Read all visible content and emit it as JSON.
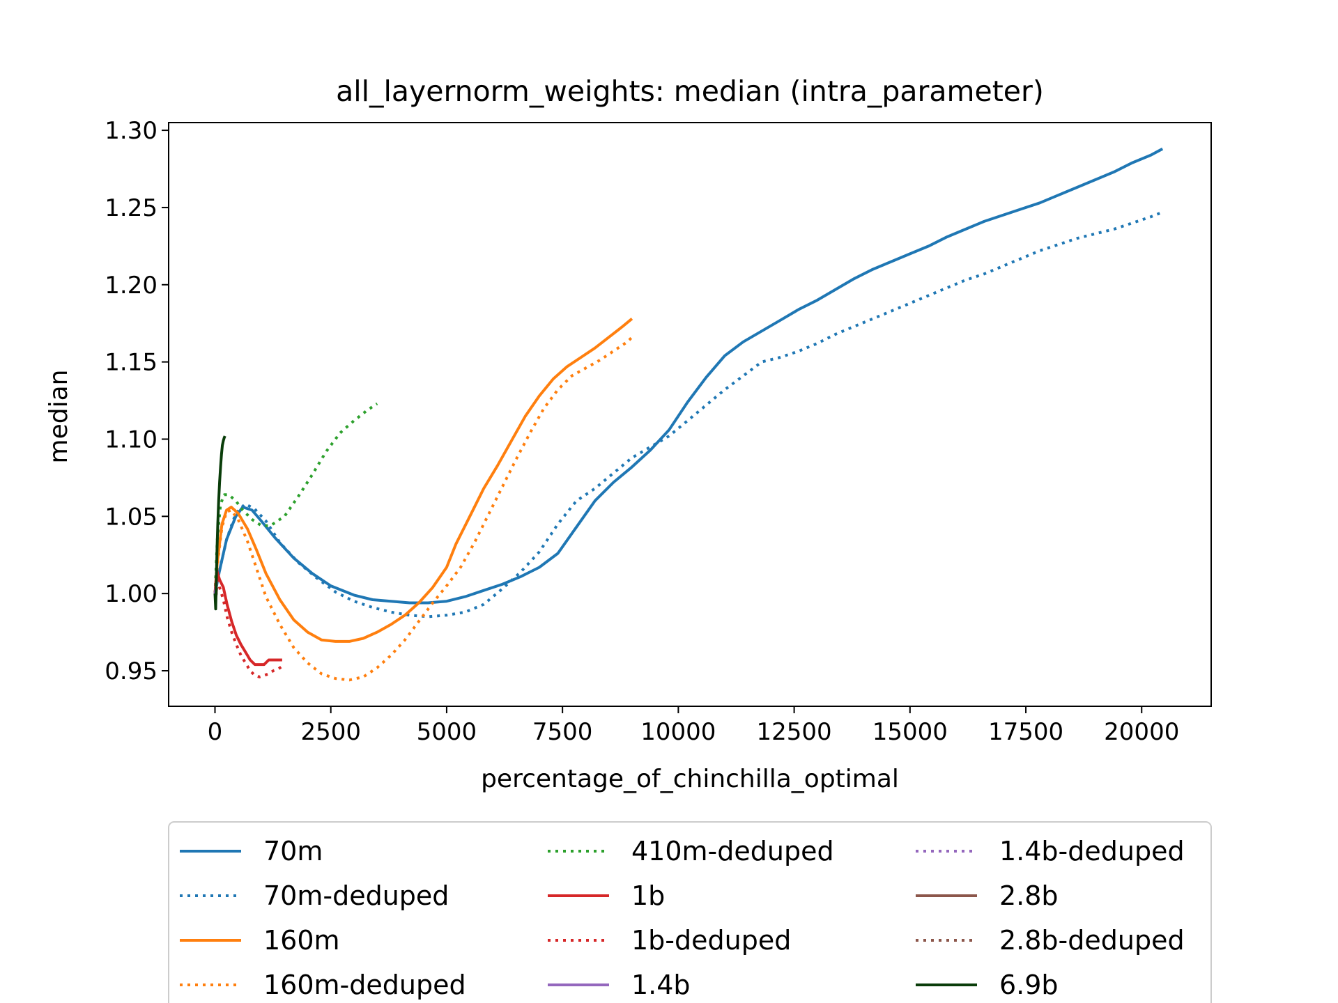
{
  "chart_data": {
    "type": "line",
    "title": "all_layernorm_weights: median (intra_parameter)",
    "xlabel": "percentage_of_chinchilla_optimal",
    "ylabel": "median",
    "xlim": [
      -1000,
      21500
    ],
    "ylim": [
      0.927,
      1.305
    ],
    "xticks": [
      0,
      2500,
      5000,
      7500,
      10000,
      12500,
      15000,
      17500,
      20000
    ],
    "xtick_labels": [
      "0",
      "2500",
      "5000",
      "7500",
      "10000",
      "12500",
      "15000",
      "17500",
      "20000"
    ],
    "yticks": [
      0.95,
      1.0,
      1.05,
      1.1,
      1.15,
      1.2,
      1.25,
      1.3
    ],
    "ytick_labels": [
      "0.95",
      "1.00",
      "1.05",
      "1.10",
      "1.15",
      "1.20",
      "1.25",
      "1.30"
    ],
    "grid": false,
    "legend_placement": "below-plot",
    "legend_columns": 3,
    "series": [
      {
        "name": "70m",
        "color": "#1f77b4",
        "style": "solid",
        "x": [
          0,
          100,
          250,
          450,
          600,
          800,
          1000,
          1300,
          1700,
          2100,
          2500,
          3000,
          3400,
          3800,
          4200,
          4600,
          5000,
          5400,
          5800,
          6200,
          6600,
          7000,
          7400,
          7800,
          8200,
          8600,
          9000,
          9400,
          9800,
          10200,
          10600,
          11000,
          11400,
          11800,
          12200,
          12600,
          13000,
          13400,
          13800,
          14200,
          14600,
          15000,
          15400,
          15800,
          16200,
          16600,
          17000,
          17400,
          17800,
          18200,
          18600,
          19000,
          19400,
          19800,
          20200,
          20450
        ],
        "y": [
          1.0,
          1.015,
          1.035,
          1.05,
          1.056,
          1.054,
          1.047,
          1.036,
          1.023,
          1.013,
          1.005,
          0.999,
          0.996,
          0.995,
          0.994,
          0.994,
          0.995,
          0.998,
          1.002,
          1.006,
          1.011,
          1.017,
          1.026,
          1.043,
          1.06,
          1.072,
          1.082,
          1.093,
          1.106,
          1.124,
          1.14,
          1.154,
          1.163,
          1.17,
          1.177,
          1.184,
          1.19,
          1.197,
          1.204,
          1.21,
          1.215,
          1.22,
          1.225,
          1.231,
          1.236,
          1.241,
          1.245,
          1.249,
          1.253,
          1.258,
          1.263,
          1.268,
          1.273,
          1.279,
          1.284,
          1.288
        ]
      },
      {
        "name": "70m-deduped",
        "color": "#1f77b4",
        "style": "dotted",
        "x": [
          0,
          100,
          250,
          450,
          650,
          850,
          1100,
          1400,
          1800,
          2200,
          2600,
          3000,
          3400,
          3800,
          4200,
          4600,
          5000,
          5400,
          5800,
          6200,
          6600,
          7000,
          7400,
          7800,
          8200,
          8600,
          9000,
          9400,
          9800,
          10200,
          10600,
          11000,
          11400,
          11800,
          12200,
          12600,
          13000,
          13400,
          13800,
          14200,
          14600,
          15000,
          15400,
          15800,
          16200,
          16600,
          17000,
          17400,
          17800,
          18200,
          18600,
          19000,
          19400,
          19800,
          20200,
          20450
        ],
        "y": [
          1.0,
          1.015,
          1.035,
          1.052,
          1.058,
          1.055,
          1.047,
          1.033,
          1.02,
          1.01,
          1.001,
          0.995,
          0.991,
          0.988,
          0.986,
          0.985,
          0.986,
          0.988,
          0.993,
          1.003,
          1.014,
          1.027,
          1.045,
          1.06,
          1.068,
          1.078,
          1.088,
          1.095,
          1.102,
          1.112,
          1.122,
          1.132,
          1.141,
          1.15,
          1.153,
          1.157,
          1.162,
          1.168,
          1.173,
          1.178,
          1.183,
          1.188,
          1.193,
          1.198,
          1.203,
          1.207,
          1.212,
          1.217,
          1.222,
          1.226,
          1.23,
          1.233,
          1.236,
          1.24,
          1.244,
          1.247
        ]
      },
      {
        "name": "160m",
        "color": "#ff7f0e",
        "style": "solid",
        "x": [
          0,
          50,
          150,
          250,
          350,
          500,
          700,
          900,
          1100,
          1400,
          1700,
          2000,
          2300,
          2600,
          2900,
          3200,
          3500,
          3800,
          4100,
          4400,
          4700,
          5000,
          5200,
          5500,
          5800,
          6100,
          6400,
          6700,
          7000,
          7300,
          7600,
          7900,
          8200,
          8500,
          8800,
          9000
        ],
        "y": [
          1.0,
          1.02,
          1.045,
          1.054,
          1.056,
          1.052,
          1.042,
          1.028,
          1.013,
          0.996,
          0.983,
          0.975,
          0.97,
          0.969,
          0.969,
          0.971,
          0.975,
          0.98,
          0.986,
          0.994,
          1.004,
          1.017,
          1.032,
          1.05,
          1.068,
          1.083,
          1.099,
          1.115,
          1.128,
          1.139,
          1.147,
          1.153,
          1.159,
          1.166,
          1.173,
          1.178
        ]
      },
      {
        "name": "160m-deduped",
        "color": "#ff7f0e",
        "style": "dotted",
        "x": [
          0,
          50,
          150,
          250,
          350,
          500,
          700,
          900,
          1100,
          1400,
          1700,
          2000,
          2300,
          2600,
          2900,
          3200,
          3500,
          3800,
          4100,
          4400,
          4700,
          5000,
          5300,
          5600,
          5900,
          6200,
          6500,
          6800,
          7100,
          7400,
          7700,
          8000,
          8300,
          8600,
          8900,
          9000
        ],
        "y": [
          1.0,
          1.018,
          1.043,
          1.053,
          1.054,
          1.048,
          1.034,
          1.016,
          0.998,
          0.98,
          0.965,
          0.955,
          0.948,
          0.945,
          0.944,
          0.946,
          0.952,
          0.96,
          0.97,
          0.982,
          0.994,
          1.005,
          1.017,
          1.033,
          1.051,
          1.069,
          1.087,
          1.104,
          1.12,
          1.132,
          1.141,
          1.146,
          1.151,
          1.157,
          1.163,
          1.166
        ]
      },
      {
        "name": "410m-deduped",
        "color": "#2ca02c",
        "style": "dotted",
        "x": [
          0,
          50,
          120,
          200,
          300,
          450,
          600,
          800,
          1000,
          1200,
          1500,
          1800,
          2100,
          2400,
          2700,
          3000,
          3300,
          3500
        ],
        "y": [
          1.0,
          1.035,
          1.058,
          1.064,
          1.064,
          1.06,
          1.054,
          1.048,
          1.044,
          1.044,
          1.05,
          1.063,
          1.077,
          1.092,
          1.104,
          1.112,
          1.119,
          1.123
        ]
      },
      {
        "name": "1b",
        "color": "#d62728",
        "style": "solid",
        "x": [
          0,
          40,
          100,
          180,
          260,
          360,
          460,
          560,
          660,
          760,
          860,
          960,
          1060,
          1160,
          1260,
          1360,
          1450
        ],
        "y": [
          1.0,
          1.015,
          1.009,
          1.004,
          0.993,
          0.982,
          0.973,
          0.967,
          0.962,
          0.957,
          0.954,
          0.954,
          0.954,
          0.957,
          0.957,
          0.957,
          0.957
        ]
      },
      {
        "name": "1b-deduped",
        "color": "#d62728",
        "style": "dotted",
        "x": [
          0,
          40,
          100,
          180,
          260,
          360,
          460,
          560,
          660,
          760,
          860,
          960,
          1060,
          1160,
          1260,
          1360,
          1450
        ],
        "y": [
          1.0,
          1.012,
          1.004,
          0.996,
          0.985,
          0.975,
          0.967,
          0.96,
          0.955,
          0.95,
          0.947,
          0.946,
          0.947,
          0.948,
          0.95,
          0.951,
          0.953
        ]
      },
      {
        "name": "1.4b",
        "color": "#9467bd",
        "style": "solid",
        "x": [
          0,
          20,
          40
        ],
        "y": [
          1.0,
          1.004,
          1.008
        ]
      },
      {
        "name": "1.4b-deduped",
        "color": "#9467bd",
        "style": "dotted",
        "x": [
          0,
          20,
          40
        ],
        "y": [
          1.0,
          1.003,
          1.007
        ]
      },
      {
        "name": "2.8b",
        "color": "#8c564b",
        "style": "solid",
        "x": [
          0,
          20,
          40
        ],
        "y": [
          1.0,
          0.998,
          1.004
        ]
      },
      {
        "name": "2.8b-deduped",
        "color": "#8c564b",
        "style": "dotted",
        "x": [
          0,
          20,
          40
        ],
        "y": [
          1.0,
          0.997,
          1.003
        ]
      },
      {
        "name": "6.9b",
        "color": "#0a3d0a",
        "style": "solid",
        "x": [
          0,
          15,
          30,
          45,
          60,
          80,
          100,
          120,
          140,
          160,
          180,
          200,
          215
        ],
        "y": [
          1.0,
          0.99,
          1.01,
          1.03,
          1.045,
          1.06,
          1.072,
          1.082,
          1.09,
          1.096,
          1.099,
          1.101,
          1.102
        ]
      }
    ]
  }
}
